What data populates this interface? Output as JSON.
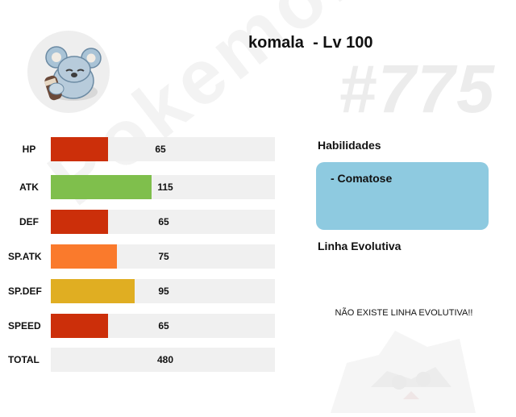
{
  "pokemon": {
    "name": "komala",
    "level_label": "- Lv 100",
    "dex_number": "#775",
    "watermark": "Pokemon Ultra"
  },
  "stats": [
    {
      "label": "HP",
      "value": 65,
      "color": "#cc2f0a"
    },
    {
      "label": "ATK",
      "value": 115,
      "color": "#7fbf4c"
    },
    {
      "label": "DEF",
      "value": 65,
      "color": "#cc2f0a"
    },
    {
      "label": "SP.ATK",
      "value": 75,
      "color": "#fa7a2c"
    },
    {
      "label": "SP.DEF",
      "value": 95,
      "color": "#e0ae22"
    },
    {
      "label": "SPEED",
      "value": 65,
      "color": "#cc2f0a"
    }
  ],
  "total": {
    "label": "TOTAL",
    "value": 480
  },
  "abilities": {
    "heading": "Habilidades",
    "items": [
      "-  Comatose"
    ],
    "box_color": "#8ecae0"
  },
  "evolution": {
    "heading": "Linha Evolutiva",
    "message": "NÃO EXISTE LINHA EVOLUTIVA!!"
  }
}
